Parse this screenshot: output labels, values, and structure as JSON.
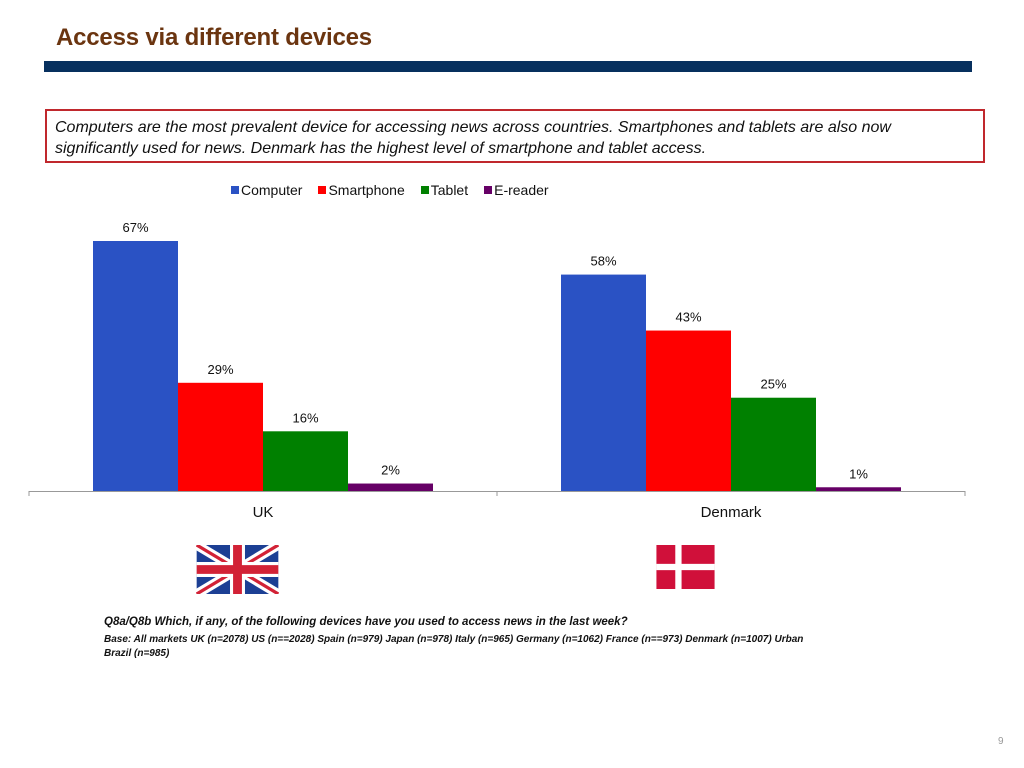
{
  "slide": {
    "title": "Access via different devices",
    "callout": "Computers are the most prevalent device for accessing news across countries. Smartphones and tablets are also now significantly used for news. Denmark has the highest level of smartphone and tablet access.",
    "question": "Q8a/Q8b Which, if any, of the following devices have you used to access news in the last week?",
    "base": "Base: All markets UK (n=2078) US (n==2028) Spain (n=979) Japan (n=978) Italy (n=965) Germany (n=1062) France (n==973) Denmark (n=1007) Urban Brazil (n=985)",
    "page_number": "9",
    "flags": [
      {
        "country": "UK",
        "icon": "uk-flag-icon"
      },
      {
        "country": "Denmark",
        "icon": "denmark-flag-icon"
      }
    ],
    "colors": {
      "title": "#6b3510",
      "rule": "#07305e",
      "callout_border": "#c0282d"
    }
  },
  "chart_data": {
    "type": "bar",
    "title": "",
    "xlabel": "",
    "ylabel": "",
    "categories": [
      "UK",
      "Denmark"
    ],
    "series": [
      {
        "name": "Computer",
        "color": "#2a52c4",
        "values": [
          67,
          58
        ],
        "labels": [
          "67%",
          "58%"
        ]
      },
      {
        "name": "Smartphone",
        "color": "#ff0000",
        "values": [
          29,
          43
        ],
        "labels": [
          "29%",
          "43%"
        ]
      },
      {
        "name": "Tablet",
        "color": "#008000",
        "values": [
          16,
          25
        ],
        "labels": [
          "16%",
          "25%"
        ]
      },
      {
        "name": "E-reader",
        "color": "#660066",
        "values": [
          2,
          1
        ],
        "labels": [
          "2%",
          "1%"
        ]
      }
    ],
    "ylim": [
      0,
      67
    ],
    "unit": "%",
    "grid": false,
    "legend_position": "top"
  }
}
